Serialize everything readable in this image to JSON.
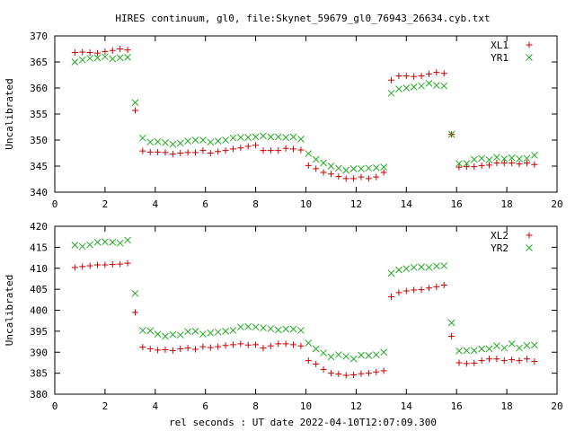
{
  "chart_data": {
    "type": "scatter",
    "title": "HIRES continuum, gl0, file:Skynet_59679_gl0_76943_26634.cyb.txt",
    "xlabel": "rel seconds : UT date 2022-04-10T12:07:09.300",
    "colors": {
      "series1": "#cc0000",
      "series2": "#22aa22",
      "axes": "#000000"
    },
    "panels": [
      {
        "ylabel": "Uncalibrated",
        "xlim": [
          0,
          20
        ],
        "ylim": [
          340,
          370
        ],
        "xticks": [
          0,
          2,
          4,
          6,
          8,
          10,
          12,
          14,
          16,
          18,
          20
        ],
        "yticks": [
          340,
          345,
          350,
          355,
          360,
          365,
          370
        ],
        "legend_position": "top-right",
        "series": [
          {
            "name": "XL1",
            "marker": "plus",
            "x": [
              0.8,
              1.1,
              1.4,
              1.7,
              2.0,
              2.3,
              2.6,
              2.9,
              3.2,
              3.5,
              3.8,
              4.1,
              4.4,
              4.7,
              5.0,
              5.3,
              5.6,
              5.9,
              6.2,
              6.5,
              6.8,
              7.1,
              7.4,
              7.7,
              8.0,
              8.3,
              8.6,
              8.9,
              9.2,
              9.5,
              9.8,
              10.1,
              10.4,
              10.7,
              11.0,
              11.3,
              11.6,
              11.9,
              12.2,
              12.5,
              12.8,
              13.1,
              13.4,
              13.7,
              14.0,
              14.3,
              14.6,
              14.9,
              15.2,
              15.5,
              15.8,
              16.1,
              16.4,
              16.7,
              17.0,
              17.3,
              17.6,
              17.9,
              18.2,
              18.5,
              18.8,
              19.1
            ],
            "y": [
              366.8,
              366.9,
              366.8,
              366.7,
              367.0,
              367.2,
              367.5,
              367.3,
              355.7,
              347.9,
              347.7,
              347.7,
              347.6,
              347.3,
              347.5,
              347.6,
              347.6,
              348.0,
              347.5,
              347.8,
              348.0,
              348.3,
              348.5,
              348.8,
              349.0,
              348.0,
              348.0,
              348.0,
              348.4,
              348.3,
              348.1,
              345.1,
              344.5,
              343.8,
              343.5,
              343.0,
              342.6,
              342.6,
              342.9,
              342.6,
              342.9,
              343.8,
              361.5,
              362.3,
              362.3,
              362.2,
              362.3,
              362.7,
              363.0,
              362.8,
              351.1,
              344.8,
              344.9,
              344.9,
              345.1,
              345.2,
              345.6,
              345.6,
              345.6,
              345.4,
              345.6,
              345.3
            ]
          },
          {
            "name": "YR1",
            "marker": "cross",
            "x": [
              0.8,
              1.1,
              1.4,
              1.7,
              2.0,
              2.3,
              2.6,
              2.9,
              3.2,
              3.5,
              3.8,
              4.1,
              4.4,
              4.7,
              5.0,
              5.3,
              5.6,
              5.9,
              6.2,
              6.5,
              6.8,
              7.1,
              7.4,
              7.7,
              8.0,
              8.3,
              8.6,
              8.9,
              9.2,
              9.5,
              9.8,
              10.1,
              10.4,
              10.7,
              11.0,
              11.3,
              11.6,
              11.9,
              12.2,
              12.5,
              12.8,
              13.1,
              13.4,
              13.7,
              14.0,
              14.3,
              14.6,
              14.9,
              15.2,
              15.5,
              15.8,
              16.1,
              16.4,
              16.7,
              17.0,
              17.3,
              17.6,
              17.9,
              18.2,
              18.5,
              18.8,
              19.1
            ],
            "y": [
              365.0,
              365.4,
              365.7,
              365.8,
              366.0,
              365.6,
              365.8,
              365.9,
              357.2,
              350.4,
              349.6,
              349.7,
              349.5,
              349.2,
              349.4,
              349.8,
              350.0,
              350.0,
              349.6,
              349.8,
              350.0,
              350.4,
              350.5,
              350.5,
              350.6,
              350.8,
              350.6,
              350.6,
              350.5,
              350.6,
              350.2,
              347.4,
              346.3,
              345.6,
              345.0,
              344.6,
              344.2,
              344.5,
              344.5,
              344.6,
              344.7,
              344.8,
              359.0,
              359.8,
              360.0,
              360.2,
              360.4,
              360.9,
              360.5,
              360.4,
              351.1,
              345.5,
              345.5,
              346.3,
              346.5,
              346.2,
              346.7,
              346.4,
              346.6,
              346.4,
              346.5,
              347.1
            ]
          }
        ]
      },
      {
        "ylabel": "Uncalibrated",
        "xlim": [
          0,
          20
        ],
        "ylim": [
          380,
          420
        ],
        "xticks": [
          0,
          2,
          4,
          6,
          8,
          10,
          12,
          14,
          16,
          18,
          20
        ],
        "yticks": [
          380,
          385,
          390,
          395,
          400,
          405,
          410,
          415,
          420
        ],
        "legend_position": "top-right",
        "series": [
          {
            "name": "XL2",
            "marker": "plus",
            "x": [
              0.8,
              1.1,
              1.4,
              1.7,
              2.0,
              2.3,
              2.6,
              2.9,
              3.2,
              3.5,
              3.8,
              4.1,
              4.4,
              4.7,
              5.0,
              5.3,
              5.6,
              5.9,
              6.2,
              6.5,
              6.8,
              7.1,
              7.4,
              7.7,
              8.0,
              8.3,
              8.6,
              8.9,
              9.2,
              9.5,
              9.8,
              10.1,
              10.4,
              10.7,
              11.0,
              11.3,
              11.6,
              11.9,
              12.2,
              12.5,
              12.8,
              13.1,
              13.4,
              13.7,
              14.0,
              14.3,
              14.6,
              14.9,
              15.2,
              15.5,
              15.8,
              16.1,
              16.4,
              16.7,
              17.0,
              17.3,
              17.6,
              17.9,
              18.2,
              18.5,
              18.8,
              19.1
            ],
            "y": [
              410.2,
              410.4,
              410.6,
              410.8,
              410.8,
              410.9,
              411.0,
              411.2,
              399.5,
              391.2,
              390.8,
              390.5,
              390.6,
              390.4,
              390.8,
              391.0,
              390.7,
              391.3,
              391.1,
              391.3,
              391.6,
              391.8,
              392.0,
              391.7,
              391.8,
              391.0,
              391.5,
              392.0,
              392.0,
              391.8,
              391.5,
              388.0,
              387.2,
              385.9,
              385.0,
              384.8,
              384.5,
              384.6,
              384.9,
              385.0,
              385.3,
              385.6,
              403.2,
              404.2,
              404.6,
              404.8,
              404.9,
              405.3,
              405.6,
              406.0,
              393.8,
              387.5,
              387.3,
              387.4,
              388.0,
              388.4,
              388.4,
              388.0,
              388.2,
              388.0,
              388.4,
              387.8
            ]
          },
          {
            "name": "YR2",
            "marker": "cross",
            "x": [
              0.8,
              1.1,
              1.4,
              1.7,
              2.0,
              2.3,
              2.6,
              2.9,
              3.2,
              3.5,
              3.8,
              4.1,
              4.4,
              4.7,
              5.0,
              5.3,
              5.6,
              5.9,
              6.2,
              6.5,
              6.8,
              7.1,
              7.4,
              7.7,
              8.0,
              8.3,
              8.6,
              8.9,
              9.2,
              9.5,
              9.8,
              10.1,
              10.4,
              10.7,
              11.0,
              11.3,
              11.6,
              11.9,
              12.2,
              12.5,
              12.8,
              13.1,
              13.4,
              13.7,
              14.0,
              14.3,
              14.6,
              14.9,
              15.2,
              15.5,
              15.8,
              16.1,
              16.4,
              16.7,
              17.0,
              17.3,
              17.6,
              17.9,
              18.2,
              18.5,
              18.8,
              19.1
            ],
            "y": [
              415.5,
              415.2,
              415.6,
              416.2,
              416.3,
              416.2,
              416.0,
              416.7,
              404.0,
              395.2,
              395.1,
              394.3,
              393.8,
              394.2,
              394.1,
              394.9,
              395.0,
              394.3,
              394.6,
              394.8,
              395.0,
              395.2,
              396.0,
              396.1,
              396.0,
              395.8,
              395.6,
              395.3,
              395.5,
              395.5,
              395.2,
              392.2,
              390.8,
              389.8,
              388.9,
              389.4,
              389.0,
              388.4,
              389.3,
              389.2,
              389.4,
              390.0,
              408.8,
              409.6,
              409.9,
              410.2,
              410.3,
              410.2,
              410.5,
              410.6,
              397.0,
              390.3,
              390.4,
              390.4,
              390.8,
              390.8,
              391.5,
              391.0,
              392.0,
              391.0,
              391.6,
              391.7
            ]
          }
        ]
      }
    ]
  }
}
